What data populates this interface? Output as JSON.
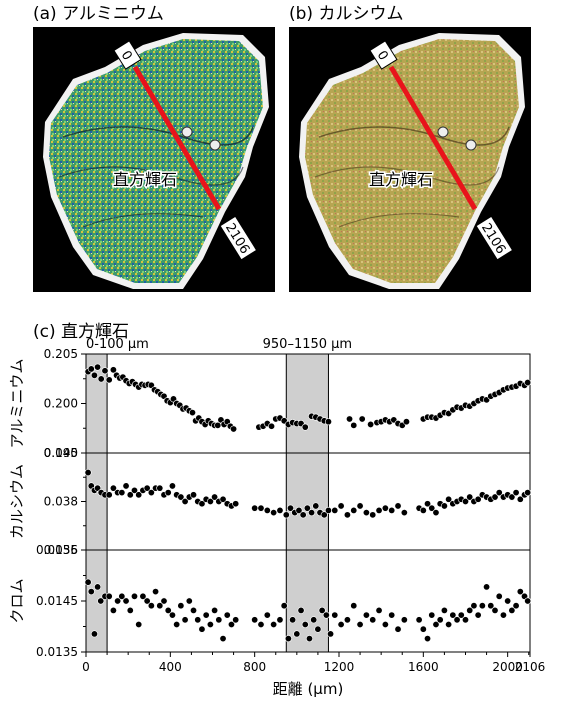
{
  "panel_a": {
    "label": "(a) アルミニウム",
    "mineral_label": "直方輝石",
    "start_marker": "0",
    "end_marker": "2106",
    "colors": {
      "base": "#3f9a6a",
      "line": "#e8141b"
    }
  },
  "panel_b": {
    "label": "(b) カルシウム",
    "mineral_label": "直方輝石",
    "start_marker": "0",
    "end_marker": "2106",
    "colors": {
      "base": "#b7a552",
      "line": "#e8141b"
    }
  },
  "panel_c_title": "(c) 直方輝石",
  "chart_data": {
    "type": "scatter",
    "title": "(c) 直方輝石",
    "xlabel": "距離 (μm)",
    "xlim": [
      0,
      2106
    ],
    "x_ticks": [
      "0",
      "400",
      "800",
      "1200",
      "1600",
      "2000",
      "2106"
    ],
    "highlight_regions": [
      {
        "label": "0-100 μm",
        "range": [
          0,
          100
        ]
      },
      {
        "label": "950–1150 μm",
        "range": [
          950,
          1150
        ]
      }
    ],
    "series": [
      {
        "name": "アルミニウム",
        "ylim": [
          0.195,
          0.205
        ],
        "y_ticks": [
          "0.195",
          "0.200",
          "0.205"
        ],
        "points": [
          [
            10,
            0.2035
          ],
          [
            25,
            0.2038
          ],
          [
            40,
            0.2031
          ],
          [
            55,
            0.204
          ],
          [
            72,
            0.2027
          ],
          [
            90,
            0.2036
          ],
          [
            110,
            0.2026
          ],
          [
            130,
            0.2037
          ],
          [
            145,
            0.2031
          ],
          [
            160,
            0.2028
          ],
          [
            175,
            0.2029
          ],
          [
            190,
            0.2025
          ],
          [
            205,
            0.2022
          ],
          [
            220,
            0.2024
          ],
          [
            235,
            0.2021
          ],
          [
            250,
            0.2018
          ],
          [
            265,
            0.2021
          ],
          [
            280,
            0.202
          ],
          [
            295,
            0.2021
          ],
          [
            310,
            0.202
          ],
          [
            325,
            0.2015
          ],
          [
            340,
            0.2013
          ],
          [
            355,
            0.201
          ],
          [
            370,
            0.2008
          ],
          [
            385,
            0.2003
          ],
          [
            400,
            0.2001
          ],
          [
            415,
            0.2005
          ],
          [
            430,
            0.2
          ],
          [
            445,
            0.1998
          ],
          [
            460,
            0.1994
          ],
          [
            475,
            0.1995
          ],
          [
            490,
            0.1992
          ],
          [
            505,
            0.199
          ],
          [
            520,
            0.1981
          ],
          [
            535,
            0.1984
          ],
          [
            550,
            0.198
          ],
          [
            565,
            0.1977
          ],
          [
            580,
            0.1981
          ],
          [
            595,
            0.1978
          ],
          [
            610,
            0.1976
          ],
          [
            625,
            0.1976
          ],
          [
            640,
            0.1982
          ],
          [
            655,
            0.1977
          ],
          [
            670,
            0.198
          ],
          [
            685,
            0.1975
          ],
          [
            700,
            0.1972
          ],
          [
            820,
            0.1974
          ],
          [
            840,
            0.1975
          ],
          [
            860,
            0.1978
          ],
          [
            880,
            0.1975
          ],
          [
            900,
            0.1983
          ],
          [
            920,
            0.1984
          ],
          [
            940,
            0.1981
          ],
          [
            960,
            0.1977
          ],
          [
            980,
            0.1979
          ],
          [
            1000,
            0.1978
          ],
          [
            1020,
            0.1978
          ],
          [
            1040,
            0.1974
          ],
          [
            1070,
            0.1986
          ],
          [
            1090,
            0.1985
          ],
          [
            1110,
            0.1983
          ],
          [
            1130,
            0.1981
          ],
          [
            1150,
            0.198
          ],
          [
            1250,
            0.1983
          ],
          [
            1270,
            0.1976
          ],
          [
            1310,
            0.1983
          ],
          [
            1350,
            0.1977
          ],
          [
            1380,
            0.1979
          ],
          [
            1400,
            0.198
          ],
          [
            1420,
            0.1982
          ],
          [
            1440,
            0.198
          ],
          [
            1460,
            0.1982
          ],
          [
            1480,
            0.1978
          ],
          [
            1500,
            0.1976
          ],
          [
            1520,
            0.198
          ],
          [
            1600,
            0.1983
          ],
          [
            1620,
            0.1985
          ],
          [
            1640,
            0.1985
          ],
          [
            1660,
            0.1984
          ],
          [
            1680,
            0.1987
          ],
          [
            1700,
            0.199
          ],
          [
            1720,
            0.1989
          ],
          [
            1740,
            0.1993
          ],
          [
            1760,
            0.1996
          ],
          [
            1780,
            0.1995
          ],
          [
            1800,
            0.1998
          ],
          [
            1820,
            0.1997
          ],
          [
            1840,
            0.2
          ],
          [
            1860,
            0.2003
          ],
          [
            1880,
            0.2005
          ],
          [
            1900,
            0.2004
          ],
          [
            1920,
            0.2008
          ],
          [
            1940,
            0.201
          ],
          [
            1960,
            0.2012
          ],
          [
            1980,
            0.2015
          ],
          [
            2000,
            0.2017
          ],
          [
            2020,
            0.2018
          ],
          [
            2040,
            0.2019
          ],
          [
            2060,
            0.2022
          ],
          [
            2080,
            0.202
          ],
          [
            2095,
            0.2023
          ]
        ]
      },
      {
        "name": "カルシウム",
        "ylim": [
          0.036,
          0.04
        ],
        "y_ticks": [
          "0.036",
          "0.038",
          "0.040"
        ],
        "points": [
          [
            10,
            0.0393
          ],
          [
            25,
            0.0387
          ],
          [
            40,
            0.0385
          ],
          [
            55,
            0.0386
          ],
          [
            72,
            0.0384
          ],
          [
            90,
            0.0383
          ],
          [
            110,
            0.0383
          ],
          [
            130,
            0.0386
          ],
          [
            150,
            0.0384
          ],
          [
            170,
            0.0384
          ],
          [
            190,
            0.0387
          ],
          [
            210,
            0.0383
          ],
          [
            230,
            0.0385
          ],
          [
            250,
            0.0383
          ],
          [
            270,
            0.0385
          ],
          [
            290,
            0.0386
          ],
          [
            310,
            0.0384
          ],
          [
            330,
            0.0386
          ],
          [
            350,
            0.0386
          ],
          [
            370,
            0.0383
          ],
          [
            390,
            0.0384
          ],
          [
            410,
            0.0387
          ],
          [
            430,
            0.0383
          ],
          [
            450,
            0.0382
          ],
          [
            470,
            0.038
          ],
          [
            490,
            0.0382
          ],
          [
            510,
            0.0383
          ],
          [
            530,
            0.038
          ],
          [
            550,
            0.0379
          ],
          [
            570,
            0.0381
          ],
          [
            590,
            0.038
          ],
          [
            610,
            0.0382
          ],
          [
            630,
            0.038
          ],
          [
            650,
            0.0381
          ],
          [
            670,
            0.0379
          ],
          [
            690,
            0.0378
          ],
          [
            710,
            0.0379
          ],
          [
            800,
            0.0377
          ],
          [
            830,
            0.0377
          ],
          [
            860,
            0.0376
          ],
          [
            890,
            0.0375
          ],
          [
            920,
            0.0376
          ],
          [
            950,
            0.0374
          ],
          [
            970,
            0.0377
          ],
          [
            990,
            0.0375
          ],
          [
            1010,
            0.0376
          ],
          [
            1030,
            0.0374
          ],
          [
            1050,
            0.0377
          ],
          [
            1070,
            0.0375
          ],
          [
            1090,
            0.0378
          ],
          [
            1110,
            0.0375
          ],
          [
            1130,
            0.0374
          ],
          [
            1150,
            0.0376
          ],
          [
            1180,
            0.0376
          ],
          [
            1210,
            0.0378
          ],
          [
            1240,
            0.0374
          ],
          [
            1270,
            0.0376
          ],
          [
            1300,
            0.0378
          ],
          [
            1330,
            0.0375
          ],
          [
            1360,
            0.0374
          ],
          [
            1390,
            0.0376
          ],
          [
            1420,
            0.0377
          ],
          [
            1450,
            0.0376
          ],
          [
            1480,
            0.0378
          ],
          [
            1510,
            0.0375
          ],
          [
            1580,
            0.0377
          ],
          [
            1600,
            0.0376
          ],
          [
            1620,
            0.0379
          ],
          [
            1640,
            0.0377
          ],
          [
            1660,
            0.0375
          ],
          [
            1680,
            0.0379
          ],
          [
            1700,
            0.0378
          ],
          [
            1720,
            0.0381
          ],
          [
            1740,
            0.0379
          ],
          [
            1760,
            0.038
          ],
          [
            1780,
            0.0381
          ],
          [
            1800,
            0.038
          ],
          [
            1820,
            0.0382
          ],
          [
            1840,
            0.038
          ],
          [
            1860,
            0.0381
          ],
          [
            1880,
            0.0383
          ],
          [
            1900,
            0.0382
          ],
          [
            1920,
            0.0381
          ],
          [
            1940,
            0.0382
          ],
          [
            1960,
            0.0384
          ],
          [
            1980,
            0.0382
          ],
          [
            2000,
            0.0383
          ],
          [
            2020,
            0.0382
          ],
          [
            2040,
            0.0384
          ],
          [
            2060,
            0.0381
          ],
          [
            2080,
            0.0383
          ],
          [
            2095,
            0.0384
          ]
        ]
      },
      {
        "name": "クロム",
        "ylim": [
          0.0135,
          0.0155
        ],
        "y_ticks": [
          "0.0135",
          "0.0145",
          "0.0155"
        ],
        "points": [
          [
            10,
            0.0149
          ],
          [
            25,
            0.0147
          ],
          [
            40,
            0.0138
          ],
          [
            55,
            0.0148
          ],
          [
            70,
            0.0145
          ],
          [
            90,
            0.0146
          ],
          [
            110,
            0.0146
          ],
          [
            130,
            0.0143
          ],
          [
            150,
            0.0145
          ],
          [
            170,
            0.0146
          ],
          [
            190,
            0.0145
          ],
          [
            210,
            0.0143
          ],
          [
            230,
            0.0146
          ],
          [
            250,
            0.014
          ],
          [
            270,
            0.0146
          ],
          [
            290,
            0.0145
          ],
          [
            310,
            0.0144
          ],
          [
            330,
            0.0147
          ],
          [
            350,
            0.0144
          ],
          [
            370,
            0.0145
          ],
          [
            390,
            0.0143
          ],
          [
            410,
            0.0142
          ],
          [
            430,
            0.014
          ],
          [
            450,
            0.0144
          ],
          [
            470,
            0.0141
          ],
          [
            490,
            0.0145
          ],
          [
            510,
            0.0143
          ],
          [
            530,
            0.0141
          ],
          [
            550,
            0.0139
          ],
          [
            570,
            0.0142
          ],
          [
            590,
            0.014
          ],
          [
            610,
            0.0143
          ],
          [
            630,
            0.0141
          ],
          [
            650,
            0.0137
          ],
          [
            670,
            0.0142
          ],
          [
            690,
            0.014
          ],
          [
            710,
            0.0141
          ],
          [
            800,
            0.0141
          ],
          [
            830,
            0.014
          ],
          [
            860,
            0.0142
          ],
          [
            890,
            0.014
          ],
          [
            920,
            0.0141
          ],
          [
            940,
            0.0144
          ],
          [
            960,
            0.0137
          ],
          [
            980,
            0.0141
          ],
          [
            1000,
            0.0138
          ],
          [
            1020,
            0.0143
          ],
          [
            1040,
            0.014
          ],
          [
            1060,
            0.0137
          ],
          [
            1080,
            0.0141
          ],
          [
            1100,
            0.0139
          ],
          [
            1120,
            0.0143
          ],
          [
            1140,
            0.0142
          ],
          [
            1160,
            0.0138
          ],
          [
            1180,
            0.0142
          ],
          [
            1210,
            0.014
          ],
          [
            1240,
            0.0141
          ],
          [
            1270,
            0.0144
          ],
          [
            1300,
            0.014
          ],
          [
            1330,
            0.0142
          ],
          [
            1360,
            0.0141
          ],
          [
            1390,
            0.0143
          ],
          [
            1420,
            0.014
          ],
          [
            1450,
            0.0142
          ],
          [
            1480,
            0.0139
          ],
          [
            1510,
            0.0141
          ],
          [
            1580,
            0.0141
          ],
          [
            1600,
            0.0139
          ],
          [
            1620,
            0.0137
          ],
          [
            1640,
            0.0142
          ],
          [
            1660,
            0.014
          ],
          [
            1680,
            0.0141
          ],
          [
            1700,
            0.0143
          ],
          [
            1720,
            0.014
          ],
          [
            1740,
            0.0142
          ],
          [
            1760,
            0.0141
          ],
          [
            1780,
            0.0142
          ],
          [
            1800,
            0.0141
          ],
          [
            1820,
            0.0143
          ],
          [
            1840,
            0.0144
          ],
          [
            1860,
            0.0142
          ],
          [
            1880,
            0.0144
          ],
          [
            1900,
            0.0148
          ],
          [
            1920,
            0.0144
          ],
          [
            1940,
            0.0143
          ],
          [
            1960,
            0.0146
          ],
          [
            1980,
            0.0142
          ],
          [
            2000,
            0.0145
          ],
          [
            2020,
            0.0143
          ],
          [
            2040,
            0.0144
          ],
          [
            2060,
            0.0147
          ],
          [
            2080,
            0.0146
          ],
          [
            2095,
            0.0145
          ]
        ]
      }
    ]
  }
}
